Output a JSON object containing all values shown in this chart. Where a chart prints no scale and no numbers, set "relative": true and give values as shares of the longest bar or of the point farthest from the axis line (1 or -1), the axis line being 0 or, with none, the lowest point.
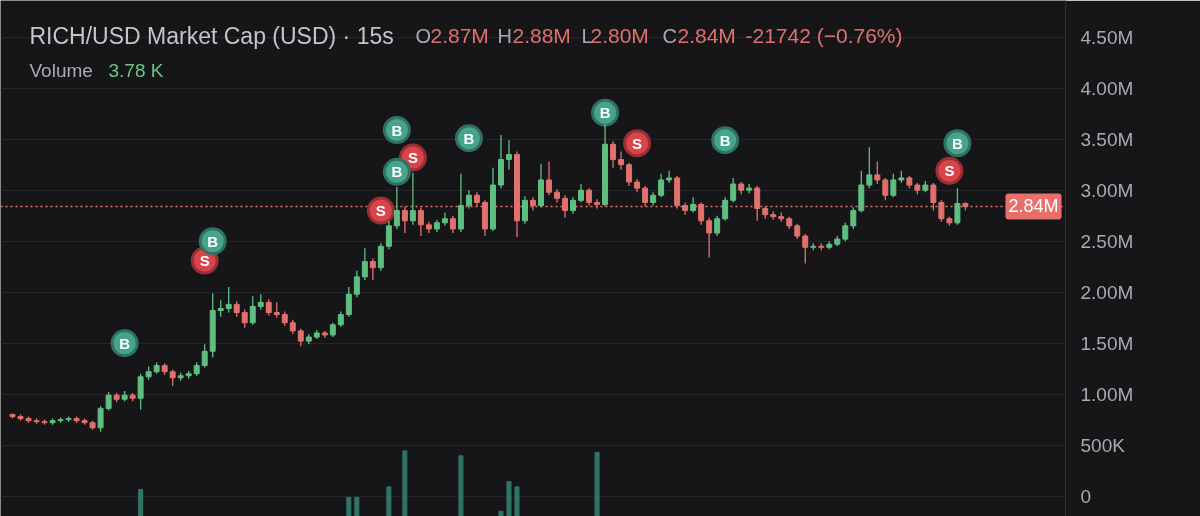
{
  "chart_data": [
    {
      "type": "candlestick",
      "title": "RICH/USD Market Cap (USD) · 15s",
      "annotations": [
        "O",
        "2.87M",
        "H",
        "2.88M",
        "L",
        "2.80M",
        "C",
        "2.84M",
        "-21742 (−0.76%)",
        "Volume",
        "3.78 K"
      ],
      "categories": [
        null,
        null,
        null,
        null,
        null,
        null,
        null,
        null,
        null,
        null,
        null,
        null,
        null,
        null,
        null,
        null,
        null,
        null,
        null,
        null,
        null,
        null,
        null,
        null,
        null,
        null,
        null,
        null,
        null,
        null,
        null,
        null,
        null,
        null,
        null,
        null,
        null,
        null,
        null,
        null,
        null,
        null,
        null,
        null,
        null,
        null,
        null,
        null,
        null,
        null,
        null,
        null,
        null,
        null,
        null,
        null,
        null,
        null,
        null,
        null,
        null,
        null,
        null,
        null,
        null,
        null,
        null,
        null,
        null,
        null,
        null,
        null,
        null,
        null,
        null,
        null,
        null,
        null,
        null,
        null,
        null,
        null,
        null,
        null,
        null,
        null,
        null,
        null,
        null,
        null,
        null,
        null,
        null,
        null,
        null,
        null,
        null,
        null,
        null,
        null,
        null,
        null,
        null,
        null,
        null,
        null,
        null,
        null,
        null,
        null,
        null,
        null,
        null,
        null,
        null,
        null,
        null,
        null,
        null,
        null,
        null,
        null,
        null,
        null,
        null,
        null,
        null,
        null,
        null,
        null,
        null,
        null,
        null
      ],
      "ohlc": [
        null,
        [
          800000,
          810000,
          760000,
          780000
        ],
        [
          780000,
          800000,
          740000,
          760000
        ],
        [
          760000,
          780000,
          720000,
          740000
        ],
        [
          740000,
          760000,
          710000,
          730000
        ],
        [
          730000,
          750000,
          700000,
          720000
        ],
        [
          720000,
          760000,
          700000,
          740000
        ],
        [
          740000,
          770000,
          720000,
          750000
        ],
        [
          750000,
          780000,
          730000,
          760000
        ],
        [
          760000,
          780000,
          720000,
          740000
        ],
        [
          740000,
          760000,
          700000,
          720000
        ],
        [
          720000,
          740000,
          650000,
          670000
        ],
        [
          670000,
          880000,
          630000,
          860000
        ],
        [
          860000,
          1020000,
          840000,
          990000
        ],
        [
          990000,
          1010000,
          920000,
          950000
        ],
        [
          950000,
          1030000,
          930000,
          990000
        ],
        [
          990000,
          1010000,
          930000,
          960000
        ],
        [
          960000,
          1200000,
          850000,
          1170000
        ],
        [
          1170000,
          1270000,
          1140000,
          1220000
        ],
        [
          1220000,
          1310000,
          1200000,
          1280000
        ],
        [
          1280000,
          1300000,
          1190000,
          1220000
        ],
        [
          1220000,
          1240000,
          1080000,
          1160000
        ],
        [
          1160000,
          1210000,
          1130000,
          1180000
        ],
        [
          1180000,
          1230000,
          1150000,
          1200000
        ],
        [
          1200000,
          1310000,
          1180000,
          1280000
        ],
        [
          1280000,
          1490000,
          1260000,
          1420000
        ],
        [
          1420000,
          1990000,
          1360000,
          1820000
        ],
        [
          1820000,
          1920000,
          1760000,
          1840000
        ],
        [
          1840000,
          2050000,
          1800000,
          1880000
        ],
        [
          1880000,
          1910000,
          1760000,
          1800000
        ],
        [
          1800000,
          1830000,
          1650000,
          1700000
        ],
        [
          1700000,
          1960000,
          1680000,
          1860000
        ],
        [
          1860000,
          1980000,
          1830000,
          1900000
        ],
        [
          1900000,
          1930000,
          1770000,
          1800000
        ],
        [
          1800000,
          1900000,
          1750000,
          1780000
        ],
        [
          1780000,
          1810000,
          1670000,
          1700000
        ],
        [
          1700000,
          1730000,
          1590000,
          1620000
        ],
        [
          1620000,
          1640000,
          1470000,
          1520000
        ],
        [
          1520000,
          1590000,
          1490000,
          1560000
        ],
        [
          1560000,
          1630000,
          1540000,
          1600000
        ],
        [
          1600000,
          1620000,
          1550000,
          1580000
        ],
        [
          1580000,
          1700000,
          1560000,
          1680000
        ],
        [
          1680000,
          1810000,
          1660000,
          1780000
        ],
        [
          1780000,
          2050000,
          1760000,
          1980000
        ],
        [
          1980000,
          2210000,
          1950000,
          2150000
        ],
        [
          2150000,
          2430000,
          2120000,
          2300000
        ],
        [
          2300000,
          2330000,
          2120000,
          2240000
        ],
        [
          2240000,
          2480000,
          2210000,
          2450000
        ],
        [
          2450000,
          2700000,
          2420000,
          2650000
        ],
        [
          2650000,
          3030000,
          2620000,
          2800000
        ],
        [
          2800000,
          2840000,
          2580000,
          2700000
        ],
        [
          2700000,
          3170000,
          2660000,
          2800000
        ],
        [
          2800000,
          2830000,
          2550000,
          2660000
        ],
        [
          2660000,
          2690000,
          2580000,
          2620000
        ],
        [
          2620000,
          2710000,
          2590000,
          2680000
        ],
        [
          2680000,
          2780000,
          2650000,
          2720000
        ],
        [
          2720000,
          2750000,
          2580000,
          2620000
        ],
        [
          2620000,
          3160000,
          2590000,
          2850000
        ],
        [
          2850000,
          3000000,
          2820000,
          2950000
        ],
        [
          2950000,
          2980000,
          2840000,
          2880000
        ],
        [
          2880000,
          2900000,
          2550000,
          2620000
        ],
        [
          2620000,
          3220000,
          2600000,
          3050000
        ],
        [
          3050000,
          3540000,
          3020000,
          3300000
        ],
        [
          3300000,
          3490000,
          3200000,
          3350000
        ],
        [
          3350000,
          3380000,
          2540000,
          2700000
        ],
        [
          2700000,
          2940000,
          2670000,
          2900000
        ],
        [
          2900000,
          2930000,
          2800000,
          2850000
        ],
        [
          2850000,
          3260000,
          2830000,
          3100000
        ],
        [
          3100000,
          3280000,
          2950000,
          2980000
        ],
        [
          2980000,
          3010000,
          2880000,
          2920000
        ],
        [
          2920000,
          2950000,
          2730000,
          2800000
        ],
        [
          2800000,
          2930000,
          2770000,
          2900000
        ],
        [
          2900000,
          3060000,
          2880000,
          3000000
        ],
        [
          3000000,
          3020000,
          2850000,
          2880000
        ],
        [
          2880000,
          2910000,
          2820000,
          2860000
        ],
        [
          2860000,
          3650000,
          2840000,
          3450000
        ],
        [
          3450000,
          3480000,
          3220000,
          3300000
        ],
        [
          3300000,
          3380000,
          3200000,
          3250000
        ],
        [
          3250000,
          3270000,
          3040000,
          3080000
        ],
        [
          3080000,
          3110000,
          2980000,
          3020000
        ],
        [
          3020000,
          3040000,
          2840000,
          2880000
        ],
        [
          2880000,
          2980000,
          2850000,
          2950000
        ],
        [
          2950000,
          3160000,
          2930000,
          3100000
        ],
        [
          3100000,
          3190000,
          3070000,
          3120000
        ],
        [
          3120000,
          3140000,
          2820000,
          2850000
        ],
        [
          2850000,
          2880000,
          2760000,
          2800000
        ],
        [
          2800000,
          2930000,
          2780000,
          2860000
        ],
        [
          2860000,
          2880000,
          2660000,
          2700000
        ],
        [
          2700000,
          2730000,
          2340000,
          2580000
        ],
        [
          2580000,
          2750000,
          2550000,
          2720000
        ],
        [
          2720000,
          2930000,
          2700000,
          2900000
        ],
        [
          2900000,
          3120000,
          2880000,
          3060000
        ],
        [
          3060000,
          3080000,
          2960000,
          3000000
        ],
        [
          3000000,
          3060000,
          2970000,
          3020000
        ],
        [
          3020000,
          3040000,
          2700000,
          2820000
        ],
        [
          2820000,
          2840000,
          2720000,
          2760000
        ],
        [
          2760000,
          2790000,
          2710000,
          2740000
        ],
        [
          2740000,
          2780000,
          2690000,
          2720000
        ],
        [
          2720000,
          2740000,
          2620000,
          2650000
        ],
        [
          2650000,
          2670000,
          2520000,
          2550000
        ],
        [
          2550000,
          2570000,
          2280000,
          2440000
        ],
        [
          2440000,
          2480000,
          2410000,
          2450000
        ],
        [
          2450000,
          2480000,
          2410000,
          2440000
        ],
        [
          2440000,
          2500000,
          2420000,
          2470000
        ],
        [
          2470000,
          2550000,
          2450000,
          2520000
        ],
        [
          2520000,
          2680000,
          2500000,
          2650000
        ],
        [
          2650000,
          2830000,
          2620000,
          2800000
        ],
        [
          2800000,
          3190000,
          2780000,
          3050000
        ],
        [
          3050000,
          3420000,
          3020000,
          3150000
        ],
        [
          3150000,
          3280000,
          3060000,
          3100000
        ],
        [
          3100000,
          3120000,
          2900000,
          2950000
        ],
        [
          2950000,
          3160000,
          2930000,
          3100000
        ],
        [
          3100000,
          3190000,
          3070000,
          3120000
        ],
        [
          3120000,
          3140000,
          3020000,
          3050000
        ],
        [
          3050000,
          3070000,
          2960000,
          3000000
        ],
        [
          3000000,
          3090000,
          2980000,
          3050000
        ],
        [
          3050000,
          3070000,
          2800000,
          2880000
        ],
        [
          2880000,
          2900000,
          2690000,
          2720000
        ],
        [
          2720000,
          2740000,
          2650000,
          2680000
        ],
        [
          2680000,
          3020000,
          2660000,
          2870000
        ],
        [
          2870000,
          2880000,
          2800000,
          2840000
        ],
        null,
        null,
        null,
        null,
        null,
        null,
        null,
        null,
        null,
        null,
        null,
        null
      ],
      "colors": [
        null,
        "#e0716c",
        "#e0716c",
        "#e0716c",
        "#e0716c",
        "#e0716c",
        "#5fbf80",
        "#5fbf80",
        "#5fbf80",
        "#e0716c",
        "#e0716c",
        "#e0716c",
        "#5fbf80",
        "#5fbf80",
        "#e0716c",
        "#5fbf80",
        "#e0716c",
        "#5fbf80",
        "#5fbf80",
        "#5fbf80",
        "#e0716c",
        "#e0716c",
        "#5fbf80",
        "#5fbf80",
        "#5fbf80",
        "#5fbf80",
        "#5fbf80",
        "#5fbf80",
        "#5fbf80",
        "#e0716c",
        "#e0716c",
        "#5fbf80",
        "#5fbf80",
        "#e0716c",
        "#e0716c",
        "#e0716c",
        "#e0716c",
        "#e0716c",
        "#5fbf80",
        "#5fbf80",
        "#e0716c",
        "#5fbf80",
        "#5fbf80",
        "#5fbf80",
        "#5fbf80",
        "#5fbf80",
        "#e0716c",
        "#5fbf80",
        "#5fbf80",
        "#5fbf80",
        "#e0716c",
        "#5fbf80",
        "#e0716c",
        "#e0716c",
        "#5fbf80",
        "#5fbf80",
        "#e0716c",
        "#5fbf80",
        "#5fbf80",
        "#e0716c",
        "#e0716c",
        "#5fbf80",
        "#5fbf80",
        "#5fbf80",
        "#e0716c",
        "#5fbf80",
        "#e0716c",
        "#5fbf80",
        "#e0716c",
        "#e0716c",
        "#e0716c",
        "#5fbf80",
        "#5fbf80",
        "#e0716c",
        "#e0716c",
        "#5fbf80",
        "#e0716c",
        "#e0716c",
        "#e0716c",
        "#e0716c",
        "#e0716c",
        "#5fbf80",
        "#5fbf80",
        "#5fbf80",
        "#e0716c",
        "#e0716c",
        "#5fbf80",
        "#e0716c",
        "#e0716c",
        "#5fbf80",
        "#5fbf80",
        "#5fbf80",
        "#e0716c",
        "#5fbf80",
        "#e0716c",
        "#e0716c",
        "#e0716c",
        "#e0716c",
        "#e0716c",
        "#e0716c",
        "#e0716c",
        "#5fbf80",
        "#e0716c",
        "#5fbf80",
        "#5fbf80",
        "#5fbf80",
        "#5fbf80",
        "#5fbf80",
        "#5fbf80",
        "#e0716c",
        "#e0716c",
        "#5fbf80",
        "#5fbf80",
        "#e0716c",
        "#e0716c",
        "#5fbf80",
        "#e0716c",
        "#e0716c",
        "#e0716c",
        "#5fbf80",
        "#e0716c",
        null,
        null,
        null,
        null,
        null,
        null,
        null,
        null,
        null,
        null,
        null,
        null
      ],
      "series": [
        {
          "type": "scatter",
          "color": "#d9444b",
          "marker": "circle",
          "values": [
            null,
            null,
            null,
            null,
            null,
            null,
            null,
            null,
            null,
            null,
            null,
            null,
            null,
            null,
            null,
            null,
            null,
            null,
            null,
            null,
            null,
            null,
            null,
            null,
            null,
            2310000,
            null,
            null,
            null,
            null,
            null,
            null,
            null,
            null,
            null,
            null,
            null,
            null,
            null,
            null,
            null,
            null,
            null,
            null,
            null,
            null,
            null,
            2800000,
            null,
            null,
            null,
            3320000,
            null,
            null,
            null,
            null,
            null,
            null,
            null,
            null,
            null,
            null,
            null,
            null,
            null,
            null,
            null,
            null,
            null,
            null,
            null,
            null,
            null,
            null,
            null,
            null,
            null,
            null,
            null,
            3460000,
            null,
            null,
            null,
            null,
            null,
            null,
            null,
            null,
            null,
            null,
            null,
            null,
            null,
            null,
            null,
            null,
            null,
            null,
            null,
            null,
            null,
            null,
            null,
            null,
            null,
            null,
            null,
            null,
            null,
            null,
            null,
            null,
            null,
            null,
            null,
            null,
            null,
            null,
            3190000,
            null,
            null,
            null,
            null,
            null,
            null,
            null,
            null,
            null,
            null,
            null,
            null,
            null,
            null
          ],
          "value_labels": [
            null,
            null,
            null,
            null,
            null,
            null,
            null,
            null,
            null,
            null,
            null,
            null,
            null,
            null,
            null,
            null,
            null,
            null,
            null,
            null,
            null,
            null,
            null,
            null,
            null,
            "S",
            null,
            null,
            null,
            null,
            null,
            null,
            null,
            null,
            null,
            null,
            null,
            null,
            null,
            null,
            null,
            null,
            null,
            null,
            null,
            null,
            null,
            "S",
            null,
            null,
            null,
            "S",
            null,
            null,
            null,
            null,
            null,
            null,
            null,
            null,
            null,
            null,
            null,
            null,
            null,
            null,
            null,
            null,
            null,
            null,
            null,
            null,
            null,
            null,
            null,
            null,
            null,
            null,
            null,
            "S",
            null,
            null,
            null,
            null,
            null,
            null,
            null,
            null,
            null,
            null,
            null,
            null,
            null,
            null,
            null,
            null,
            null,
            null,
            null,
            null,
            null,
            null,
            null,
            null,
            null,
            null,
            null,
            null,
            null,
            null,
            null,
            null,
            null,
            null,
            null,
            null,
            null,
            null,
            "S",
            null,
            null,
            null,
            null,
            null,
            null,
            null,
            null,
            null,
            null,
            null,
            null,
            null,
            null
          ]
        },
        {
          "type": "scatter",
          "color": "#45a48b",
          "marker": "circle",
          "values": [
            null,
            null,
            null,
            null,
            null,
            null,
            null,
            null,
            null,
            null,
            null,
            null,
            null,
            null,
            null,
            1500000,
            null,
            null,
            null,
            null,
            null,
            null,
            null,
            null,
            null,
            null,
            2500000,
            null,
            null,
            null,
            null,
            null,
            null,
            null,
            null,
            null,
            null,
            null,
            null,
            null,
            null,
            null,
            null,
            null,
            null,
            null,
            null,
            null,
            null,
            3590000,
            null,
            null,
            null,
            null,
            null,
            null,
            null,
            null,
            3510000,
            null,
            null,
            null,
            null,
            null,
            null,
            null,
            null,
            null,
            null,
            null,
            null,
            null,
            null,
            null,
            null,
            3760000,
            null,
            null,
            null,
            null,
            null,
            null,
            null,
            null,
            null,
            null,
            null,
            null,
            null,
            null,
            3490000,
            null,
            null,
            null,
            null,
            null,
            null,
            null,
            null,
            null,
            null,
            null,
            null,
            null,
            null,
            null,
            null,
            null,
            null,
            null,
            null,
            null,
            null,
            null,
            null,
            null,
            null,
            null,
            null,
            3460000,
            null,
            null,
            null,
            null,
            null,
            null,
            null,
            null,
            null,
            null,
            null,
            null,
            null
          ],
          "value_labels": [
            null,
            null,
            null,
            null,
            null,
            null,
            null,
            null,
            null,
            null,
            null,
            null,
            null,
            null,
            null,
            "B",
            null,
            null,
            null,
            null,
            null,
            null,
            null,
            null,
            null,
            null,
            "B",
            null,
            null,
            null,
            null,
            null,
            null,
            null,
            null,
            null,
            null,
            null,
            null,
            null,
            null,
            null,
            null,
            null,
            null,
            null,
            null,
            null,
            null,
            "B",
            null,
            null,
            null,
            null,
            null,
            null,
            null,
            null,
            "B",
            null,
            null,
            null,
            null,
            null,
            null,
            null,
            null,
            null,
            null,
            null,
            null,
            null,
            null,
            null,
            null,
            "B",
            null,
            null,
            null,
            null,
            null,
            null,
            null,
            null,
            null,
            null,
            null,
            null,
            null,
            null,
            "B",
            null,
            null,
            null,
            null,
            null,
            null,
            null,
            null,
            null,
            null,
            null,
            null,
            null,
            null,
            null,
            null,
            null,
            null,
            null,
            null,
            null,
            null,
            null,
            null,
            null,
            null,
            null,
            null,
            "B",
            null,
            null,
            null,
            null,
            null,
            null,
            null,
            null,
            null,
            null,
            null,
            null,
            null
          ]
        },
        {
          "type": "scatter",
          "color": "#45a48b",
          "marker": "circle",
          "values": [
            null,
            null,
            null,
            null,
            null,
            null,
            null,
            null,
            null,
            null,
            null,
            null,
            null,
            null,
            null,
            null,
            null,
            null,
            null,
            null,
            null,
            null,
            null,
            null,
            null,
            null,
            null,
            null,
            null,
            null,
            null,
            null,
            null,
            null,
            null,
            null,
            null,
            null,
            null,
            null,
            null,
            null,
            null,
            null,
            null,
            null,
            null,
            null,
            null,
            3180000,
            null,
            null,
            null,
            null,
            null,
            null,
            null,
            null,
            null,
            null,
            null,
            null,
            null,
            null,
            null,
            null,
            null,
            null,
            null,
            null,
            null,
            null,
            null,
            null,
            null,
            null,
            null,
            null,
            null,
            null,
            null,
            null,
            null,
            null,
            null,
            null,
            null,
            null,
            null,
            null,
            null,
            null,
            null,
            null,
            null,
            null,
            null,
            null,
            null,
            null,
            null,
            null,
            null,
            null,
            null,
            null,
            null,
            null,
            null,
            null,
            null,
            null,
            null,
            null,
            null,
            null,
            null,
            null,
            null,
            null,
            null,
            null,
            null,
            null,
            null,
            null,
            null,
            null,
            null,
            null,
            null,
            null,
            null
          ],
          "value_labels": [
            null,
            null,
            null,
            null,
            null,
            null,
            null,
            null,
            null,
            null,
            null,
            null,
            null,
            null,
            null,
            null,
            null,
            null,
            null,
            null,
            null,
            null,
            null,
            null,
            null,
            null,
            null,
            null,
            null,
            null,
            null,
            null,
            null,
            null,
            null,
            null,
            null,
            null,
            null,
            null,
            null,
            null,
            null,
            null,
            null,
            null,
            null,
            null,
            null,
            "B",
            null,
            null,
            null,
            null,
            null,
            null,
            null,
            null,
            null,
            null,
            null,
            null,
            null,
            null,
            null,
            null,
            null,
            null,
            null,
            null,
            null,
            null,
            null,
            null,
            null,
            null,
            null,
            null,
            null,
            null,
            null,
            null,
            null,
            null,
            null,
            null,
            null,
            null,
            null,
            null,
            null,
            null,
            null,
            null,
            null,
            null,
            null,
            null,
            null,
            null,
            null,
            null,
            null,
            null,
            null,
            null,
            null,
            null,
            null,
            null,
            null,
            null,
            null,
            null,
            null,
            null,
            null,
            null,
            null,
            null,
            null,
            null,
            null,
            null,
            null,
            null,
            null,
            null,
            null,
            null,
            null,
            null,
            null
          ]
        }
      ],
      "ylim": [
        -200000,
        4860000
      ],
      "yticks": [
        0,
        {
          "value": 500000,
          "label": "500K"
        },
        {
          "value": 1000000,
          "label": "1.00M"
        },
        {
          "value": 1500000,
          "label": "1.50M"
        },
        {
          "value": 2000000,
          "label": "2.00M"
        },
        {
          "value": 2500000,
          "label": "2.50M"
        },
        {
          "value": 3000000,
          "label": "3.00M"
        },
        {
          "value": 3500000,
          "label": "3.50M"
        },
        {
          "value": 4000000,
          "label": "4.00M"
        },
        {
          "value": 4500000,
          "label": "4.50M"
        }
      ],
      "ref_lines": [
        {
          "axis": "y",
          "value": 2840000,
          "label": "2.84M",
          "color": "#e8706c",
          "line_style": "dotted"
        }
      ],
      "grid": "y",
      "tick_labels": "y"
    },
    {
      "type": "bar",
      "relative": true,
      "color": "#2f7566",
      "tick_labels": false,
      "categories": [
        null,
        null,
        null,
        null,
        null,
        null,
        null,
        null,
        null,
        null,
        null,
        null,
        null,
        null,
        null,
        null,
        null,
        null,
        null,
        null,
        null,
        null,
        null,
        null,
        null,
        null,
        null,
        null,
        null,
        null,
        null,
        null,
        null,
        null,
        null,
        null,
        null,
        null,
        null,
        null,
        null,
        null,
        null,
        null,
        null,
        null,
        null,
        null,
        null,
        null,
        null,
        null,
        null,
        null,
        null,
        null,
        null,
        null,
        null,
        null,
        null,
        null,
        null,
        null,
        null,
        null,
        null,
        null,
        null,
        null,
        null,
        null,
        null,
        null,
        null,
        null,
        null,
        null,
        null,
        null,
        null,
        null,
        null,
        null,
        null,
        null,
        null,
        null,
        null,
        null,
        null,
        null,
        null,
        null,
        null,
        null,
        null,
        null,
        null,
        null,
        null,
        null,
        null,
        null,
        null,
        null,
        null,
        null,
        null,
        null,
        null,
        null,
        null,
        null,
        null,
        null,
        null,
        null,
        null,
        null,
        null,
        null,
        null,
        null,
        null,
        null,
        null,
        null,
        null,
        null,
        null,
        null,
        null
      ],
      "values": [
        null,
        null,
        null,
        null,
        null,
        null,
        null,
        null,
        null,
        null,
        null,
        null,
        null,
        null,
        null,
        null,
        null,
        0.41,
        null,
        null,
        null,
        null,
        null,
        null,
        null,
        null,
        null,
        null,
        null,
        null,
        null,
        null,
        null,
        null,
        null,
        null,
        null,
        null,
        null,
        null,
        null,
        null,
        null,
        0.29,
        0.29,
        null,
        null,
        null,
        0.45,
        null,
        1,
        null,
        null,
        null,
        null,
        null,
        null,
        0.92,
        null,
        null,
        null,
        null,
        0.08,
        0.53,
        0.45,
        null,
        null,
        null,
        null,
        null,
        null,
        null,
        null,
        null,
        0.97,
        null,
        null,
        null,
        null,
        null,
        null,
        null,
        null,
        null,
        null,
        null,
        null,
        null,
        null,
        null,
        null,
        null,
        null,
        null,
        null,
        null,
        null,
        null,
        null,
        null,
        null,
        null,
        null,
        null,
        null,
        null,
        null,
        null,
        null,
        null,
        null,
        null,
        null,
        null,
        null,
        null,
        null,
        null,
        null,
        null,
        null,
        null,
        null,
        null,
        null,
        null,
        null,
        null,
        null,
        null,
        null,
        null,
        null
      ]
    }
  ]
}
